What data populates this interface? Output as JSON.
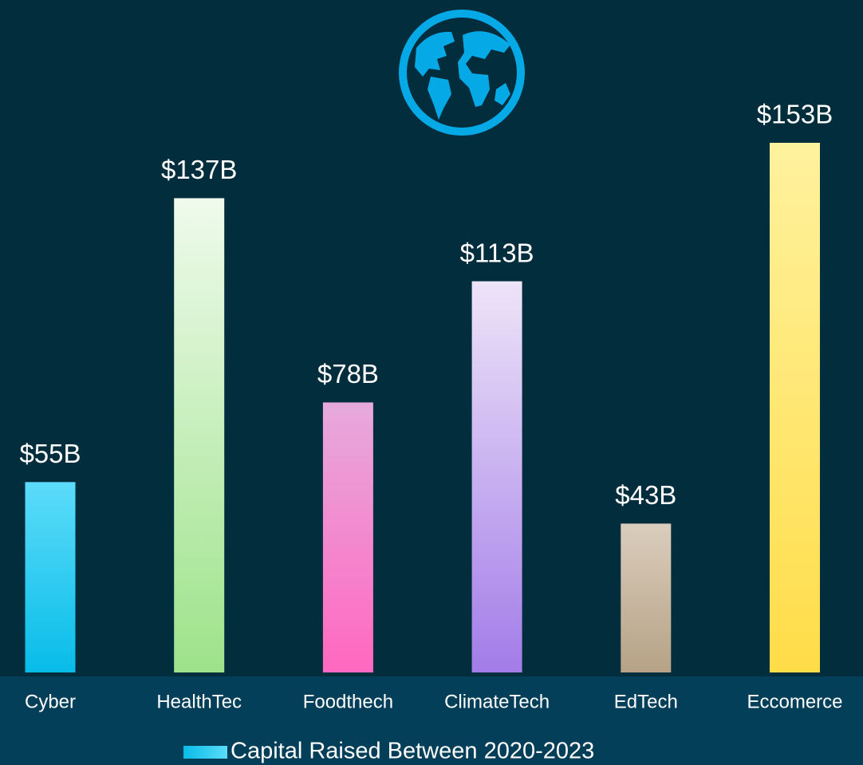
{
  "chart_data": {
    "type": "bar",
    "categories": [
      "Cyber",
      "HealthTec",
      "Foodthech",
      "ClimateTech",
      "EdTech",
      "Eccomerce"
    ],
    "series": [
      {
        "name": "Capital Raised Between 2020-2023",
        "values": [
          55,
          137,
          78,
          113,
          43,
          153
        ],
        "value_labels": [
          "$55B",
          "$137B",
          "$78B",
          "$113B",
          "$43B",
          "$153B"
        ],
        "colors": [
          [
            "#5cdcfa",
            "#08bce8"
          ],
          [
            "#effaec",
            "#9de38a"
          ],
          [
            "#e6aadc",
            "#ff68c0"
          ],
          [
            "#eee4f8",
            "#a27ce8"
          ],
          [
            "#dacdbc",
            "#b6a286"
          ],
          [
            "#fff29e",
            "#ffdc48"
          ]
        ]
      }
    ]
  }
}
